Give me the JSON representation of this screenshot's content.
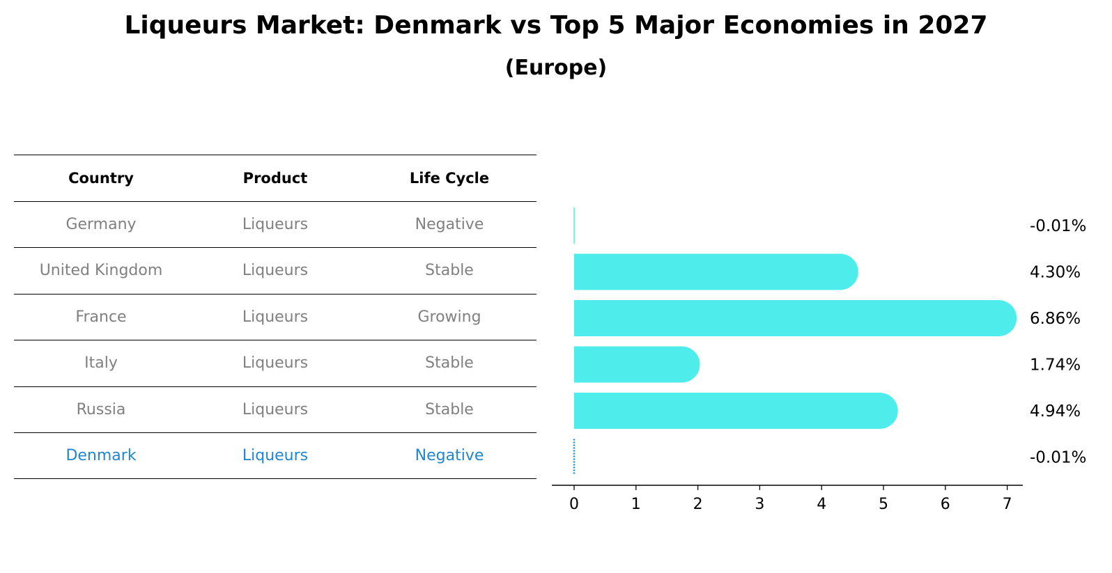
{
  "title": "Liqueurs Market: Denmark vs Top 5 Major Economies in 2027",
  "subtitle": "(Europe)",
  "colors": {
    "bar": "#4EEDEB",
    "highlight": "#1F86D1",
    "muted": "#808080",
    "text": "#000000"
  },
  "table": {
    "headers": [
      "Country",
      "Product",
      "Life Cycle"
    ],
    "rows": [
      {
        "country": "Germany",
        "product": "Liqueurs",
        "life_cycle": "Negative",
        "highlight": false
      },
      {
        "country": "United Kingdom",
        "product": "Liqueurs",
        "life_cycle": "Stable",
        "highlight": false
      },
      {
        "country": "France",
        "product": "Liqueurs",
        "life_cycle": "Growing",
        "highlight": false
      },
      {
        "country": "Italy",
        "product": "Liqueurs",
        "life_cycle": "Stable",
        "highlight": false
      },
      {
        "country": "Russia",
        "product": "Liqueurs",
        "life_cycle": "Stable",
        "highlight": false
      },
      {
        "country": "Denmark",
        "product": "Liqueurs",
        "life_cycle": "Negative",
        "highlight": true
      }
    ]
  },
  "chart_data": {
    "type": "bar",
    "orientation": "horizontal",
    "categories": [
      "Germany",
      "United Kingdom",
      "France",
      "Italy",
      "Russia",
      "Denmark"
    ],
    "values": [
      -0.01,
      4.3,
      6.86,
      1.74,
      4.94,
      -0.01
    ],
    "value_labels": [
      "-0.01%",
      "4.30%",
      "6.86%",
      "1.74%",
      "4.94%",
      "-0.01%"
    ],
    "x_ticks": [
      "0",
      "1",
      "2",
      "3",
      "4",
      "5",
      "6",
      "7"
    ],
    "xlim": [
      -0.35,
      7.2
    ],
    "grid": false,
    "xlabel": "",
    "ylabel": ""
  }
}
